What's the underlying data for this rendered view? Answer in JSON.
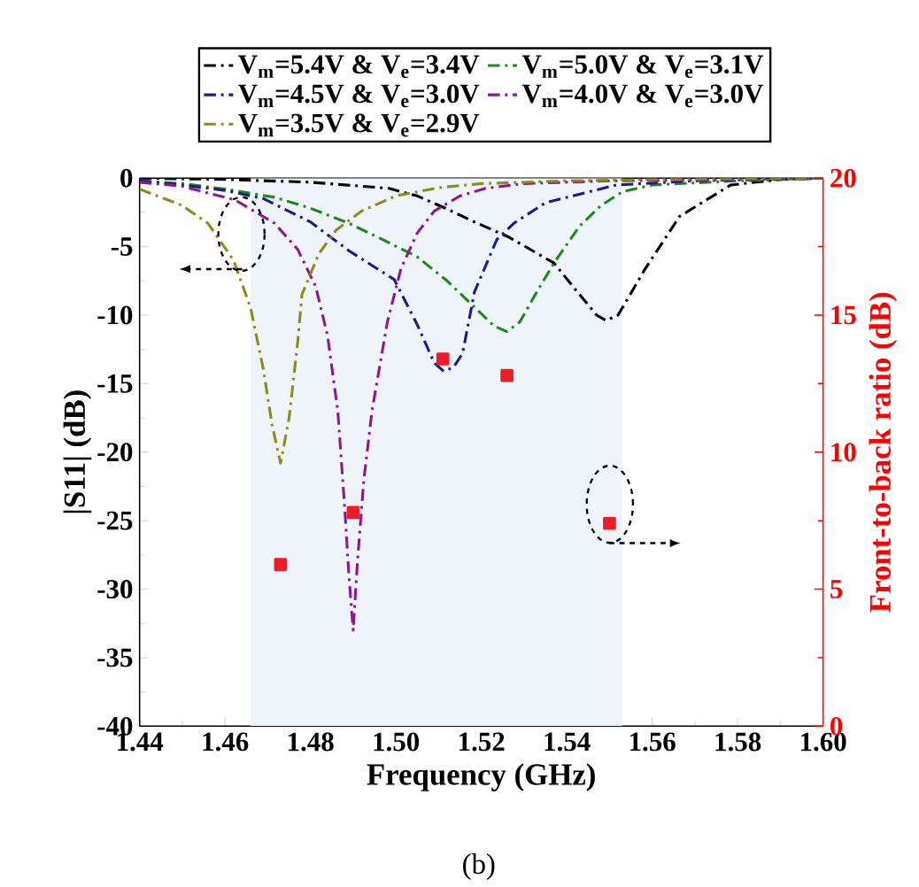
{
  "chart_data": {
    "type": "line",
    "xlabel": "Frequency (GHz)",
    "ylabel": "|S11| (dB)",
    "y2label": "Front-to-back ratio (dB)",
    "annotations": [
      "(b)"
    ],
    "xlim": [
      1.44,
      1.6
    ],
    "xticks": [
      1.44,
      1.46,
      1.48,
      {
        "value": 1.5,
        "label": "1.50"
      },
      1.52,
      1.54,
      1.56,
      1.58,
      {
        "value": 1.6,
        "label": "1.60"
      }
    ],
    "ylim": [
      -40,
      0
    ],
    "yticks": [
      -40,
      -35,
      -30,
      -25,
      -20,
      -15,
      -10,
      -5,
      0
    ],
    "y2lim": [
      0,
      20
    ],
    "y2ticks": [
      0,
      5,
      10,
      15,
      20
    ],
    "legend": "top",
    "line_style": "dashdot",
    "bands": [
      {
        "axis": "x",
        "from": 1.466,
        "to": 1.553,
        "color": "#eef4fa"
      }
    ],
    "series": [
      {
        "name": "V$_{m}$=5.4V & V$_{e}$=3.4V",
        "color": "#000000",
        "x": [
          1.44,
          1.46,
          1.48,
          1.4984,
          1.505,
          1.5116,
          1.5184,
          1.5264,
          1.537,
          1.543,
          1.547,
          1.5492,
          1.552,
          1.5584,
          1.5664,
          1.5784,
          1.59,
          1.6
        ],
        "values": [
          0,
          -0.1,
          -0.3,
          -0.75,
          -1.3,
          -2.2,
          -3.2,
          -4.3,
          -6.2,
          -8.5,
          -10,
          -10.4,
          -10,
          -6.6,
          -2.8,
          -0.5,
          -0.1,
          0
        ]
      },
      {
        "name": "V$_{m}$=5.0V & V$_{e}$=3.1V",
        "color": "#1a8a1a",
        "x": [
          1.44,
          1.45,
          1.46,
          1.4716,
          1.48,
          1.489,
          1.497,
          1.505,
          1.512,
          1.518,
          1.523,
          1.526,
          1.529,
          1.533,
          1.537,
          1.543,
          1.548,
          1.553,
          1.56,
          1.58,
          1.6
        ],
        "values": [
          -0.2,
          -0.4,
          -0.8,
          -1.4,
          -2.2,
          -3.3,
          -4.5,
          -5.75,
          -7.5,
          -9.3,
          -10.8,
          -11.2,
          -10.5,
          -8.3,
          -6.2,
          -3.5,
          -2,
          -1,
          -0.5,
          -0.2,
          0
        ]
      },
      {
        "name": "V$_{m}$=4.5V & V$_{e}$=3.0V",
        "color": "#1c1c8c",
        "x": [
          1.44,
          1.45,
          1.46,
          1.469,
          1.48,
          1.489,
          1.4996,
          1.505,
          1.509,
          1.5112,
          1.5135,
          1.5156,
          1.5184,
          1.5236,
          1.5276,
          1.535,
          1.5516,
          1.57,
          1.6
        ],
        "values": [
          -0.2,
          -0.5,
          -0.9,
          -1.5,
          -3.2,
          -5.3,
          -7.4,
          -10.7,
          -13.5,
          -14.1,
          -13.8,
          -12.8,
          -8.3,
          -4.5,
          -3.3,
          -1.8,
          -0.5,
          -0.2,
          0
        ]
      },
      {
        "name": "V$_{m}$=4.0V & V$_{e}$=3.0V",
        "color": "#8b1a8b",
        "x": [
          1.44,
          1.45,
          1.4624,
          1.4716,
          1.477,
          1.4812,
          1.484,
          1.4864,
          1.488,
          1.489,
          1.49,
          1.491,
          1.4925,
          1.4944,
          1.498,
          1.5012,
          1.505,
          1.509,
          1.515,
          1.521,
          1.53,
          1.55,
          1.58,
          1.6
        ],
        "values": [
          -0.3,
          -0.6,
          -1.6,
          -3.3,
          -5.2,
          -7.9,
          -11.5,
          -17,
          -24,
          -29,
          -33,
          -28,
          -22,
          -17,
          -10.5,
          -6.6,
          -4,
          -2.4,
          -1.3,
          -0.75,
          -0.4,
          -0.2,
          -0.1,
          0
        ]
      },
      {
        "name": "V$_{m}$=3.5V & V$_{e}$=2.9V",
        "color": "#8c8c1c",
        "x": [
          1.44,
          1.45,
          1.456,
          1.462,
          1.466,
          1.469,
          1.471,
          1.473,
          1.475,
          1.477,
          1.478,
          1.482,
          1.486,
          1.492,
          1.5,
          1.51,
          1.52,
          1.54,
          1.56,
          1.6
        ],
        "values": [
          -0.8,
          -2,
          -3.3,
          -6,
          -9.5,
          -14,
          -18,
          -20.8,
          -17.5,
          -12,
          -8.5,
          -5.5,
          -3.8,
          -2.4,
          -1.3,
          -0.7,
          -0.4,
          -0.2,
          -0.1,
          0
        ]
      },
      {
        "type": "scatter",
        "axis": "y2",
        "marker": "square",
        "color": "#ee1c24",
        "x": [
          1.473,
          1.49,
          1.511,
          1.526,
          1.55
        ],
        "values": [
          5.9,
          7.8,
          13.4,
          12.8,
          7.4
        ]
      }
    ]
  }
}
